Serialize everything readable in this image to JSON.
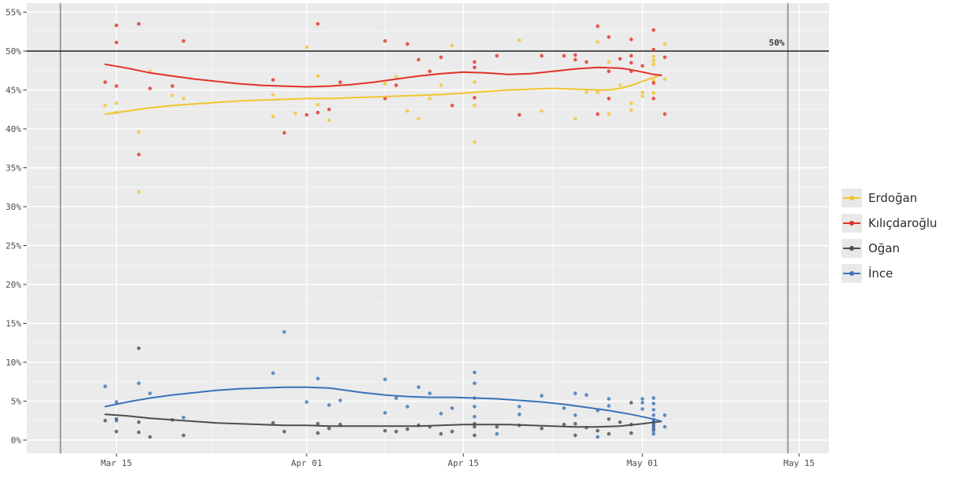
{
  "chart_data": {
    "type": "scatter",
    "title": "",
    "subtitle": "",
    "point_format": "[days_after_Mar_15, percent]",
    "x_axis": {
      "label": "",
      "ticks": [
        {
          "label": "Mar 15",
          "day": 0
        },
        {
          "label": "Apr 01",
          "day": 17
        },
        {
          "label": "Apr 15",
          "day": 31
        },
        {
          "label": "May 01",
          "day": 47
        },
        {
          "label": "May 15",
          "day": 61
        }
      ],
      "minor_tick_days": [
        8.5,
        24,
        39,
        54
      ]
    },
    "y_axis": {
      "label": "",
      "ticks": [
        {
          "label": "0%",
          "value": 0
        },
        {
          "label": "5%",
          "value": 5
        },
        {
          "label": "10%",
          "value": 10
        },
        {
          "label": "15%",
          "value": 15
        },
        {
          "label": "20%",
          "value": 20
        },
        {
          "label": "25%",
          "value": 25
        },
        {
          "label": "30%",
          "value": 30
        },
        {
          "label": "35%",
          "value": 35
        },
        {
          "label": "40%",
          "value": 40
        },
        {
          "label": "45%",
          "value": 45
        },
        {
          "label": "50%",
          "value": 50
        },
        {
          "label": "55%",
          "value": 55
        }
      ],
      "minor_tick_values": [
        2.5,
        7.5,
        12.5,
        17.5,
        22.5,
        27.5,
        32.5,
        37.5,
        42.5,
        47.5,
        52.5
      ]
    },
    "reference_lines": {
      "horizontal": {
        "value": 50,
        "label": "50%",
        "label_day": 59,
        "color": "#1f1f1f"
      },
      "vertical_days": [
        -5,
        60
      ],
      "vertical_color": "#9b9b9b"
    },
    "legend_position": "right",
    "panel_background": "#ebebeb",
    "grid_major_color": "#ffffff",
    "grid_minor_color": "#f5f5f5",
    "series": [
      {
        "name": "Erdoğan",
        "color": "#efc52f",
        "points": [
          [
            -1,
            43.0
          ],
          [
            0,
            43.3
          ],
          [
            0,
            42.1
          ],
          [
            2,
            39.6
          ],
          [
            2,
            31.9
          ],
          [
            3,
            47.4
          ],
          [
            5,
            44.3
          ],
          [
            6,
            43.9
          ],
          [
            14,
            44.4
          ],
          [
            14,
            41.6
          ],
          [
            16,
            42.0
          ],
          [
            17,
            50.5
          ],
          [
            18,
            46.8
          ],
          [
            18,
            43.1
          ],
          [
            19,
            41.1
          ],
          [
            24,
            45.8
          ],
          [
            25,
            46.7
          ],
          [
            26,
            42.3
          ],
          [
            27,
            41.3
          ],
          [
            28,
            43.9
          ],
          [
            29,
            45.6
          ],
          [
            30,
            50.7
          ],
          [
            32,
            46.0
          ],
          [
            32,
            43.0
          ],
          [
            32,
            38.3
          ],
          [
            36,
            51.4
          ],
          [
            38,
            42.3
          ],
          [
            41,
            41.3
          ],
          [
            42,
            44.7
          ],
          [
            43,
            51.2
          ],
          [
            43,
            44.7
          ],
          [
            44,
            48.6
          ],
          [
            44,
            41.9
          ],
          [
            45,
            45.6
          ],
          [
            46,
            43.3
          ],
          [
            46,
            42.4
          ],
          [
            47,
            44.7
          ],
          [
            47,
            44.2
          ],
          [
            48,
            49.3
          ],
          [
            48,
            48.8
          ],
          [
            48,
            48.3
          ],
          [
            48,
            46.2
          ],
          [
            48,
            44.6
          ],
          [
            49,
            50.9
          ],
          [
            49,
            46.4
          ]
        ],
        "trend": [
          [
            -1,
            41.9
          ],
          [
            1,
            42.3
          ],
          [
            3,
            42.7
          ],
          [
            5,
            43.0
          ],
          [
            7,
            43.2
          ],
          [
            9,
            43.4
          ],
          [
            11,
            43.6
          ],
          [
            13,
            43.7
          ],
          [
            15,
            43.8
          ],
          [
            17,
            43.9
          ],
          [
            19,
            43.9
          ],
          [
            21,
            44.0
          ],
          [
            23,
            44.1
          ],
          [
            25,
            44.2
          ],
          [
            27,
            44.3
          ],
          [
            29,
            44.4
          ],
          [
            31,
            44.6
          ],
          [
            33,
            44.8
          ],
          [
            35,
            45.0
          ],
          [
            37,
            45.1
          ],
          [
            39,
            45.2
          ],
          [
            41,
            45.1
          ],
          [
            43,
            45.0
          ],
          [
            44,
            45.0
          ],
          [
            45,
            45.2
          ],
          [
            46,
            45.6
          ],
          [
            47,
            46.1
          ],
          [
            48,
            46.6
          ],
          [
            48.7,
            46.9
          ]
        ]
      },
      {
        "name": "Kılıçdaroğlu",
        "color": "#e23128",
        "points": [
          [
            -1,
            46.0
          ],
          [
            0,
            53.3
          ],
          [
            0,
            51.1
          ],
          [
            0,
            45.5
          ],
          [
            2,
            53.5
          ],
          [
            2,
            36.7
          ],
          [
            3,
            45.2
          ],
          [
            5,
            45.5
          ],
          [
            6,
            51.3
          ],
          [
            14,
            46.3
          ],
          [
            15,
            39.5
          ],
          [
            17,
            41.8
          ],
          [
            18,
            53.5
          ],
          [
            18,
            42.1
          ],
          [
            19,
            42.5
          ],
          [
            20,
            46.0
          ],
          [
            24,
            51.3
          ],
          [
            24,
            43.9
          ],
          [
            25,
            45.6
          ],
          [
            26,
            50.9
          ],
          [
            27,
            48.9
          ],
          [
            28,
            47.4
          ],
          [
            29,
            49.2
          ],
          [
            30,
            43.0
          ],
          [
            32,
            48.6
          ],
          [
            32,
            47.9
          ],
          [
            32,
            44.0
          ],
          [
            34,
            49.4
          ],
          [
            36,
            41.8
          ],
          [
            38,
            49.4
          ],
          [
            40,
            49.4
          ],
          [
            41,
            49.5
          ],
          [
            41,
            48.9
          ],
          [
            42,
            48.6
          ],
          [
            43,
            53.2
          ],
          [
            43,
            41.9
          ],
          [
            44,
            51.8
          ],
          [
            44,
            47.4
          ],
          [
            44,
            43.9
          ],
          [
            45,
            49.0
          ],
          [
            46,
            51.5
          ],
          [
            46,
            49.4
          ],
          [
            46,
            48.5
          ],
          [
            46,
            47.4
          ],
          [
            47,
            48.1
          ],
          [
            48,
            52.7
          ],
          [
            48,
            50.2
          ],
          [
            48,
            45.9
          ],
          [
            48,
            43.9
          ],
          [
            49,
            49.2
          ],
          [
            49,
            41.9
          ]
        ],
        "trend": [
          [
            -1,
            48.3
          ],
          [
            1,
            47.8
          ],
          [
            3,
            47.2
          ],
          [
            5,
            46.8
          ],
          [
            7,
            46.4
          ],
          [
            9,
            46.1
          ],
          [
            11,
            45.8
          ],
          [
            13,
            45.6
          ],
          [
            15,
            45.5
          ],
          [
            17,
            45.4
          ],
          [
            19,
            45.5
          ],
          [
            21,
            45.7
          ],
          [
            23,
            46.0
          ],
          [
            25,
            46.4
          ],
          [
            27,
            46.8
          ],
          [
            29,
            47.1
          ],
          [
            31,
            47.3
          ],
          [
            33,
            47.2
          ],
          [
            35,
            47.0
          ],
          [
            37,
            47.1
          ],
          [
            39,
            47.4
          ],
          [
            41,
            47.7
          ],
          [
            43,
            47.9
          ],
          [
            45,
            47.8
          ],
          [
            46,
            47.6
          ],
          [
            47,
            47.3
          ],
          [
            48,
            47.0
          ],
          [
            48.7,
            46.9
          ]
        ]
      },
      {
        "name": "Oğan",
        "color": "#4d4d4d",
        "points": [
          [
            -1,
            2.5
          ],
          [
            0,
            2.7
          ],
          [
            0,
            1.1
          ],
          [
            2,
            11.8
          ],
          [
            2,
            2.3
          ],
          [
            2,
            1.0
          ],
          [
            3,
            0.4
          ],
          [
            5,
            2.6
          ],
          [
            6,
            0.6
          ],
          [
            14,
            2.2
          ],
          [
            15,
            1.1
          ],
          [
            18,
            2.1
          ],
          [
            18,
            0.9
          ],
          [
            19,
            1.5
          ],
          [
            20,
            2.0
          ],
          [
            24,
            1.2
          ],
          [
            25,
            1.1
          ],
          [
            26,
            1.4
          ],
          [
            27,
            1.9
          ],
          [
            28,
            1.7
          ],
          [
            29,
            0.8
          ],
          [
            30,
            1.1
          ],
          [
            32,
            2.1
          ],
          [
            32,
            1.7
          ],
          [
            32,
            0.6
          ],
          [
            34,
            1.7
          ],
          [
            36,
            1.9
          ],
          [
            38,
            1.5
          ],
          [
            40,
            2.0
          ],
          [
            41,
            2.1
          ],
          [
            41,
            0.6
          ],
          [
            42,
            1.6
          ],
          [
            43,
            1.2
          ],
          [
            44,
            2.7
          ],
          [
            44,
            0.8
          ],
          [
            45,
            2.3
          ],
          [
            46,
            4.8
          ],
          [
            46,
            2.0
          ],
          [
            46,
            0.9
          ],
          [
            48,
            2.3
          ],
          [
            48,
            1.9
          ],
          [
            48,
            1.4
          ]
        ],
        "trend": [
          [
            -1,
            3.3
          ],
          [
            1,
            3.1
          ],
          [
            3,
            2.8
          ],
          [
            5,
            2.6
          ],
          [
            7,
            2.4
          ],
          [
            9,
            2.2
          ],
          [
            11,
            2.1
          ],
          [
            13,
            2.0
          ],
          [
            15,
            1.9
          ],
          [
            17,
            1.9
          ],
          [
            19,
            1.8
          ],
          [
            21,
            1.8
          ],
          [
            23,
            1.8
          ],
          [
            25,
            1.8
          ],
          [
            27,
            1.8
          ],
          [
            29,
            1.9
          ],
          [
            31,
            2.0
          ],
          [
            33,
            2.0
          ],
          [
            35,
            2.0
          ],
          [
            37,
            1.9
          ],
          [
            39,
            1.8
          ],
          [
            41,
            1.7
          ],
          [
            43,
            1.7
          ],
          [
            45,
            1.8
          ],
          [
            47,
            2.1
          ],
          [
            48.7,
            2.4
          ]
        ]
      },
      {
        "name": "İnce",
        "color": "#3a72b8",
        "points": [
          [
            -1,
            6.9
          ],
          [
            0,
            4.9
          ],
          [
            0,
            2.5
          ],
          [
            2,
            7.3
          ],
          [
            3,
            6.0
          ],
          [
            6,
            2.9
          ],
          [
            14,
            8.6
          ],
          [
            15,
            13.9
          ],
          [
            17,
            4.9
          ],
          [
            18,
            7.9
          ],
          [
            19,
            4.5
          ],
          [
            20,
            5.1
          ],
          [
            24,
            7.8
          ],
          [
            24,
            3.5
          ],
          [
            25,
            5.4
          ],
          [
            26,
            4.3
          ],
          [
            27,
            6.8
          ],
          [
            28,
            6.0
          ],
          [
            29,
            3.4
          ],
          [
            30,
            4.1
          ],
          [
            32,
            8.7
          ],
          [
            32,
            7.3
          ],
          [
            32,
            5.4
          ],
          [
            32,
            4.3
          ],
          [
            32,
            3.0
          ],
          [
            34,
            0.8
          ],
          [
            36,
            4.3
          ],
          [
            36,
            3.3
          ],
          [
            38,
            5.7
          ],
          [
            40,
            4.1
          ],
          [
            41,
            6.0
          ],
          [
            41,
            3.2
          ],
          [
            42,
            5.8
          ],
          [
            43,
            3.8
          ],
          [
            43,
            0.4
          ],
          [
            44,
            5.3
          ],
          [
            44,
            4.4
          ],
          [
            47,
            5.3
          ],
          [
            47,
            4.8
          ],
          [
            47,
            4.0
          ],
          [
            48,
            5.4
          ],
          [
            48,
            4.7
          ],
          [
            48,
            3.9
          ],
          [
            48,
            3.2
          ],
          [
            48,
            2.6
          ],
          [
            48,
            2.2
          ],
          [
            48,
            1.7
          ],
          [
            48,
            1.2
          ],
          [
            48,
            0.8
          ],
          [
            49,
            3.2
          ],
          [
            49,
            1.7
          ]
        ],
        "trend": [
          [
            -1,
            4.3
          ],
          [
            1,
            4.9
          ],
          [
            3,
            5.4
          ],
          [
            5,
            5.8
          ],
          [
            7,
            6.1
          ],
          [
            9,
            6.4
          ],
          [
            11,
            6.6
          ],
          [
            13,
            6.7
          ],
          [
            15,
            6.8
          ],
          [
            17,
            6.8
          ],
          [
            19,
            6.7
          ],
          [
            20,
            6.5
          ],
          [
            22,
            6.1
          ],
          [
            24,
            5.8
          ],
          [
            26,
            5.6
          ],
          [
            28,
            5.5
          ],
          [
            30,
            5.5
          ],
          [
            32,
            5.4
          ],
          [
            34,
            5.3
          ],
          [
            36,
            5.1
          ],
          [
            38,
            4.9
          ],
          [
            40,
            4.6
          ],
          [
            42,
            4.2
          ],
          [
            44,
            3.8
          ],
          [
            46,
            3.3
          ],
          [
            48,
            2.7
          ],
          [
            48.7,
            2.4
          ]
        ]
      }
    ]
  }
}
